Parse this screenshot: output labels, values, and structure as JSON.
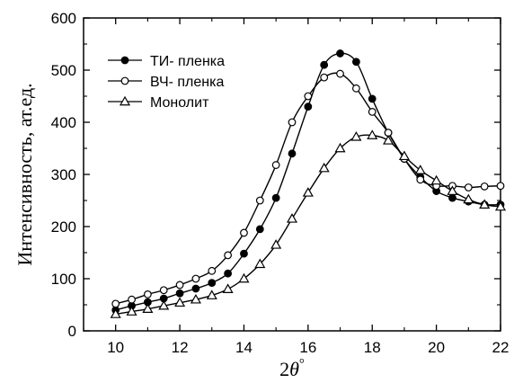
{
  "chart_data": {
    "type": "line",
    "xlabel": "2θ°",
    "ylabel": "Интенсивность, ат.ед.",
    "xlim": [
      9,
      22
    ],
    "ylim": [
      0,
      600
    ],
    "xticks": [
      10,
      12,
      14,
      16,
      18,
      20,
      22
    ],
    "yticks": [
      0,
      100,
      200,
      300,
      400,
      500,
      600
    ],
    "grid": false,
    "legend_position": "top-left",
    "series": [
      {
        "name": "ТИ- пленка",
        "marker": "filled-circle",
        "color": "#000000",
        "x": [
          10,
          10.5,
          11,
          11.5,
          12,
          12.5,
          13,
          13.5,
          14,
          14.5,
          15,
          15.5,
          16,
          16.5,
          17,
          17.5,
          18,
          18.5,
          19,
          19.5,
          20,
          20.5,
          21,
          21.5,
          22
        ],
        "y": [
          40,
          48,
          55,
          62,
          72,
          81,
          92,
          110,
          148,
          195,
          255,
          340,
          430,
          510,
          532,
          516,
          445,
          380,
          330,
          295,
          268,
          255,
          248,
          242,
          242
        ]
      },
      {
        "name": "ВЧ- пленка",
        "marker": "open-circle",
        "color": "#000000",
        "x": [
          10,
          10.5,
          11,
          11.5,
          12,
          12.5,
          13,
          13.5,
          14,
          14.5,
          15,
          15.5,
          16,
          16.5,
          17,
          17.5,
          18,
          18.5,
          19,
          19.5,
          20,
          20.5,
          21,
          21.5,
          22
        ],
        "y": [
          52,
          60,
          70,
          78,
          88,
          100,
          115,
          145,
          188,
          250,
          318,
          400,
          450,
          486,
          493,
          465,
          420,
          380,
          330,
          290,
          278,
          278,
          275,
          277,
          278
        ]
      },
      {
        "name": "Монолит",
        "marker": "open-triangle",
        "color": "#000000",
        "x": [
          10,
          10.5,
          11,
          11.5,
          12,
          12.5,
          13,
          13.5,
          14,
          14.5,
          15,
          15.5,
          16,
          16.5,
          17,
          17.5,
          18,
          18.5,
          19,
          19.5,
          20,
          20.5,
          21,
          21.5,
          22
        ],
        "y": [
          32,
          37,
          42,
          48,
          54,
          60,
          68,
          80,
          100,
          128,
          165,
          215,
          265,
          312,
          350,
          372,
          375,
          365,
          335,
          308,
          288,
          268,
          252,
          242,
          238
        ]
      }
    ]
  }
}
